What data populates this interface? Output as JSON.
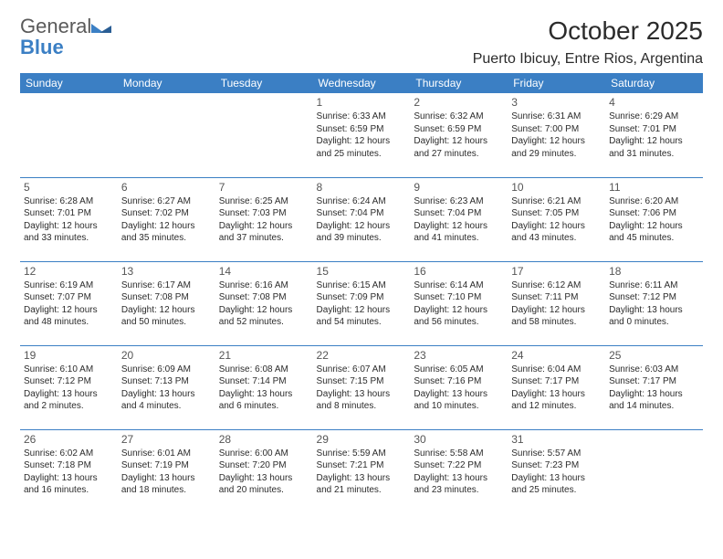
{
  "logo": {
    "general": "General",
    "blue": "Blue"
  },
  "header": {
    "month_title": "October 2025",
    "location": "Puerto Ibicuy, Entre Rios, Argentina"
  },
  "colors": {
    "header_bg": "#3b7fc4",
    "header_fg": "#ffffff",
    "rule": "#3b7fc4",
    "text": "#2b2b2b",
    "daynum": "#555555",
    "logo_gray": "#5a5a5a",
    "logo_blue": "#3b7fc4"
  },
  "weekdays": [
    "Sunday",
    "Monday",
    "Tuesday",
    "Wednesday",
    "Thursday",
    "Friday",
    "Saturday"
  ],
  "weeks": [
    [
      {
        "empty": true
      },
      {
        "empty": true
      },
      {
        "empty": true
      },
      {
        "day": "1",
        "sunrise": "Sunrise: 6:33 AM",
        "sunset": "Sunset: 6:59 PM",
        "daylight1": "Daylight: 12 hours",
        "daylight2": "and 25 minutes."
      },
      {
        "day": "2",
        "sunrise": "Sunrise: 6:32 AM",
        "sunset": "Sunset: 6:59 PM",
        "daylight1": "Daylight: 12 hours",
        "daylight2": "and 27 minutes."
      },
      {
        "day": "3",
        "sunrise": "Sunrise: 6:31 AM",
        "sunset": "Sunset: 7:00 PM",
        "daylight1": "Daylight: 12 hours",
        "daylight2": "and 29 minutes."
      },
      {
        "day": "4",
        "sunrise": "Sunrise: 6:29 AM",
        "sunset": "Sunset: 7:01 PM",
        "daylight1": "Daylight: 12 hours",
        "daylight2": "and 31 minutes."
      }
    ],
    [
      {
        "day": "5",
        "sunrise": "Sunrise: 6:28 AM",
        "sunset": "Sunset: 7:01 PM",
        "daylight1": "Daylight: 12 hours",
        "daylight2": "and 33 minutes."
      },
      {
        "day": "6",
        "sunrise": "Sunrise: 6:27 AM",
        "sunset": "Sunset: 7:02 PM",
        "daylight1": "Daylight: 12 hours",
        "daylight2": "and 35 minutes."
      },
      {
        "day": "7",
        "sunrise": "Sunrise: 6:25 AM",
        "sunset": "Sunset: 7:03 PM",
        "daylight1": "Daylight: 12 hours",
        "daylight2": "and 37 minutes."
      },
      {
        "day": "8",
        "sunrise": "Sunrise: 6:24 AM",
        "sunset": "Sunset: 7:04 PM",
        "daylight1": "Daylight: 12 hours",
        "daylight2": "and 39 minutes."
      },
      {
        "day": "9",
        "sunrise": "Sunrise: 6:23 AM",
        "sunset": "Sunset: 7:04 PM",
        "daylight1": "Daylight: 12 hours",
        "daylight2": "and 41 minutes."
      },
      {
        "day": "10",
        "sunrise": "Sunrise: 6:21 AM",
        "sunset": "Sunset: 7:05 PM",
        "daylight1": "Daylight: 12 hours",
        "daylight2": "and 43 minutes."
      },
      {
        "day": "11",
        "sunrise": "Sunrise: 6:20 AM",
        "sunset": "Sunset: 7:06 PM",
        "daylight1": "Daylight: 12 hours",
        "daylight2": "and 45 minutes."
      }
    ],
    [
      {
        "day": "12",
        "sunrise": "Sunrise: 6:19 AM",
        "sunset": "Sunset: 7:07 PM",
        "daylight1": "Daylight: 12 hours",
        "daylight2": "and 48 minutes."
      },
      {
        "day": "13",
        "sunrise": "Sunrise: 6:17 AM",
        "sunset": "Sunset: 7:08 PM",
        "daylight1": "Daylight: 12 hours",
        "daylight2": "and 50 minutes."
      },
      {
        "day": "14",
        "sunrise": "Sunrise: 6:16 AM",
        "sunset": "Sunset: 7:08 PM",
        "daylight1": "Daylight: 12 hours",
        "daylight2": "and 52 minutes."
      },
      {
        "day": "15",
        "sunrise": "Sunrise: 6:15 AM",
        "sunset": "Sunset: 7:09 PM",
        "daylight1": "Daylight: 12 hours",
        "daylight2": "and 54 minutes."
      },
      {
        "day": "16",
        "sunrise": "Sunrise: 6:14 AM",
        "sunset": "Sunset: 7:10 PM",
        "daylight1": "Daylight: 12 hours",
        "daylight2": "and 56 minutes."
      },
      {
        "day": "17",
        "sunrise": "Sunrise: 6:12 AM",
        "sunset": "Sunset: 7:11 PM",
        "daylight1": "Daylight: 12 hours",
        "daylight2": "and 58 minutes."
      },
      {
        "day": "18",
        "sunrise": "Sunrise: 6:11 AM",
        "sunset": "Sunset: 7:12 PM",
        "daylight1": "Daylight: 13 hours",
        "daylight2": "and 0 minutes."
      }
    ],
    [
      {
        "day": "19",
        "sunrise": "Sunrise: 6:10 AM",
        "sunset": "Sunset: 7:12 PM",
        "daylight1": "Daylight: 13 hours",
        "daylight2": "and 2 minutes."
      },
      {
        "day": "20",
        "sunrise": "Sunrise: 6:09 AM",
        "sunset": "Sunset: 7:13 PM",
        "daylight1": "Daylight: 13 hours",
        "daylight2": "and 4 minutes."
      },
      {
        "day": "21",
        "sunrise": "Sunrise: 6:08 AM",
        "sunset": "Sunset: 7:14 PM",
        "daylight1": "Daylight: 13 hours",
        "daylight2": "and 6 minutes."
      },
      {
        "day": "22",
        "sunrise": "Sunrise: 6:07 AM",
        "sunset": "Sunset: 7:15 PM",
        "daylight1": "Daylight: 13 hours",
        "daylight2": "and 8 minutes."
      },
      {
        "day": "23",
        "sunrise": "Sunrise: 6:05 AM",
        "sunset": "Sunset: 7:16 PM",
        "daylight1": "Daylight: 13 hours",
        "daylight2": "and 10 minutes."
      },
      {
        "day": "24",
        "sunrise": "Sunrise: 6:04 AM",
        "sunset": "Sunset: 7:17 PM",
        "daylight1": "Daylight: 13 hours",
        "daylight2": "and 12 minutes."
      },
      {
        "day": "25",
        "sunrise": "Sunrise: 6:03 AM",
        "sunset": "Sunset: 7:17 PM",
        "daylight1": "Daylight: 13 hours",
        "daylight2": "and 14 minutes."
      }
    ],
    [
      {
        "day": "26",
        "sunrise": "Sunrise: 6:02 AM",
        "sunset": "Sunset: 7:18 PM",
        "daylight1": "Daylight: 13 hours",
        "daylight2": "and 16 minutes."
      },
      {
        "day": "27",
        "sunrise": "Sunrise: 6:01 AM",
        "sunset": "Sunset: 7:19 PM",
        "daylight1": "Daylight: 13 hours",
        "daylight2": "and 18 minutes."
      },
      {
        "day": "28",
        "sunrise": "Sunrise: 6:00 AM",
        "sunset": "Sunset: 7:20 PM",
        "daylight1": "Daylight: 13 hours",
        "daylight2": "and 20 minutes."
      },
      {
        "day": "29",
        "sunrise": "Sunrise: 5:59 AM",
        "sunset": "Sunset: 7:21 PM",
        "daylight1": "Daylight: 13 hours",
        "daylight2": "and 21 minutes."
      },
      {
        "day": "30",
        "sunrise": "Sunrise: 5:58 AM",
        "sunset": "Sunset: 7:22 PM",
        "daylight1": "Daylight: 13 hours",
        "daylight2": "and 23 minutes."
      },
      {
        "day": "31",
        "sunrise": "Sunrise: 5:57 AM",
        "sunset": "Sunset: 7:23 PM",
        "daylight1": "Daylight: 13 hours",
        "daylight2": "and 25 minutes."
      },
      {
        "empty": true
      }
    ]
  ]
}
